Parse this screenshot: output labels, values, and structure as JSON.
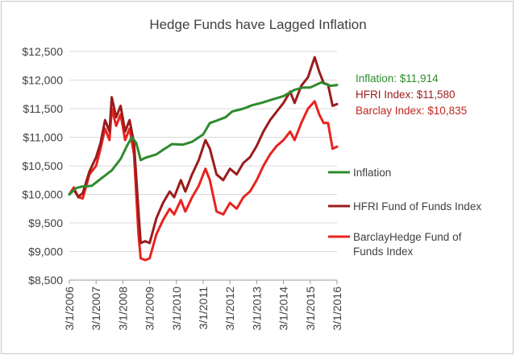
{
  "chart_data": {
    "type": "line",
    "title": "Hedge Funds have Lagged Inflation",
    "xlabel": "",
    "ylabel": "",
    "ylim": [
      8500,
      12500
    ],
    "y_ticks": [
      "$8,500",
      "$9,000",
      "$9,500",
      "$10,000",
      "$10,500",
      "$11,000",
      "$11,500",
      "$12,000",
      "$12,500"
    ],
    "x_ticks": [
      "3/1/2006",
      "3/1/2007",
      "3/1/2008",
      "3/1/2009",
      "3/1/2010",
      "3/1/2011",
      "3/1/2012",
      "3/1/2013",
      "3/1/2014",
      "3/1/2015",
      "3/1/2016"
    ],
    "grid": true,
    "legend_position": "right",
    "series": [
      {
        "name": "Inflation",
        "color": "#2e8b2e",
        "points": [
          [
            "2006-03",
            10000
          ],
          [
            "2006-06",
            10110
          ],
          [
            "2006-09",
            10140
          ],
          [
            "2007-01",
            10150
          ],
          [
            "2007-06",
            10300
          ],
          [
            "2007-10",
            10420
          ],
          [
            "2008-02",
            10620
          ],
          [
            "2008-05",
            10860
          ],
          [
            "2008-07",
            11000
          ],
          [
            "2008-09",
            10900
          ],
          [
            "2008-11",
            10600
          ],
          [
            "2009-01",
            10640
          ],
          [
            "2009-06",
            10700
          ],
          [
            "2009-09",
            10780
          ],
          [
            "2010-01",
            10880
          ],
          [
            "2010-06",
            10870
          ],
          [
            "2010-10",
            10920
          ],
          [
            "2011-03",
            11050
          ],
          [
            "2011-06",
            11250
          ],
          [
            "2011-09",
            11290
          ],
          [
            "2012-01",
            11350
          ],
          [
            "2012-04",
            11450
          ],
          [
            "2012-09",
            11500
          ],
          [
            "2013-01",
            11560
          ],
          [
            "2013-05",
            11600
          ],
          [
            "2013-10",
            11660
          ],
          [
            "2014-03",
            11720
          ],
          [
            "2014-08",
            11830
          ],
          [
            "2014-12",
            11870
          ],
          [
            "2015-03",
            11870
          ],
          [
            "2015-08",
            11960
          ],
          [
            "2015-12",
            11900
          ],
          [
            "2016-03",
            11914
          ]
        ]
      },
      {
        "name": "HFRI Fund of Funds Index",
        "color": "#9b1c1c",
        "points": [
          [
            "2006-03",
            10000
          ],
          [
            "2006-05",
            10080
          ],
          [
            "2006-07",
            9960
          ],
          [
            "2006-09",
            10020
          ],
          [
            "2006-12",
            10400
          ],
          [
            "2007-03",
            10650
          ],
          [
            "2007-05",
            10900
          ],
          [
            "2007-07",
            11300
          ],
          [
            "2007-09",
            11100
          ],
          [
            "2007-10",
            11700
          ],
          [
            "2007-12",
            11350
          ],
          [
            "2008-02",
            11550
          ],
          [
            "2008-04",
            11100
          ],
          [
            "2008-06",
            11300
          ],
          [
            "2008-08",
            10900
          ],
          [
            "2008-10",
            9700
          ],
          [
            "2008-11",
            9150
          ],
          [
            "2009-01",
            9180
          ],
          [
            "2009-03",
            9150
          ],
          [
            "2009-06",
            9580
          ],
          [
            "2009-09",
            9850
          ],
          [
            "2009-12",
            10050
          ],
          [
            "2010-02",
            9950
          ],
          [
            "2010-05",
            10250
          ],
          [
            "2010-07",
            10050
          ],
          [
            "2010-10",
            10350
          ],
          [
            "2011-01",
            10600
          ],
          [
            "2011-04",
            10950
          ],
          [
            "2011-06",
            10800
          ],
          [
            "2011-09",
            10350
          ],
          [
            "2011-12",
            10250
          ],
          [
            "2012-03",
            10450
          ],
          [
            "2012-06",
            10350
          ],
          [
            "2012-09",
            10550
          ],
          [
            "2012-12",
            10650
          ],
          [
            "2013-03",
            10850
          ],
          [
            "2013-06",
            11100
          ],
          [
            "2013-09",
            11300
          ],
          [
            "2013-12",
            11450
          ],
          [
            "2014-03",
            11600
          ],
          [
            "2014-06",
            11800
          ],
          [
            "2014-08",
            11600
          ],
          [
            "2014-11",
            11900
          ],
          [
            "2015-02",
            12050
          ],
          [
            "2015-05",
            12400
          ],
          [
            "2015-07",
            12150
          ],
          [
            "2015-09",
            11950
          ],
          [
            "2015-11",
            11920
          ],
          [
            "2016-01",
            11550
          ],
          [
            "2016-03",
            11580
          ]
        ]
      },
      {
        "name": "BarclayHedge Fund of Funds Index",
        "color": "#e8231f",
        "points": [
          [
            "2006-03",
            10000
          ],
          [
            "2006-05",
            10120
          ],
          [
            "2006-07",
            9950
          ],
          [
            "2006-09",
            9930
          ],
          [
            "2006-12",
            10350
          ],
          [
            "2007-03",
            10500
          ],
          [
            "2007-05",
            10800
          ],
          [
            "2007-07",
            11150
          ],
          [
            "2007-09",
            10950
          ],
          [
            "2007-10",
            11500
          ],
          [
            "2007-12",
            11200
          ],
          [
            "2008-02",
            11400
          ],
          [
            "2008-04",
            10950
          ],
          [
            "2008-06",
            11150
          ],
          [
            "2008-08",
            10700
          ],
          [
            "2008-10",
            9300
          ],
          [
            "2008-11",
            8880
          ],
          [
            "2009-01",
            8850
          ],
          [
            "2009-03",
            8880
          ],
          [
            "2009-06",
            9300
          ],
          [
            "2009-09",
            9550
          ],
          [
            "2009-12",
            9750
          ],
          [
            "2010-02",
            9650
          ],
          [
            "2010-05",
            9900
          ],
          [
            "2010-07",
            9700
          ],
          [
            "2010-10",
            9950
          ],
          [
            "2011-01",
            10150
          ],
          [
            "2011-04",
            10450
          ],
          [
            "2011-06",
            10250
          ],
          [
            "2011-09",
            9700
          ],
          [
            "2011-12",
            9650
          ],
          [
            "2012-03",
            9850
          ],
          [
            "2012-06",
            9750
          ],
          [
            "2012-09",
            9950
          ],
          [
            "2012-12",
            10050
          ],
          [
            "2013-03",
            10250
          ],
          [
            "2013-06",
            10500
          ],
          [
            "2013-09",
            10700
          ],
          [
            "2013-12",
            10850
          ],
          [
            "2014-03",
            10950
          ],
          [
            "2014-06",
            11100
          ],
          [
            "2014-08",
            10950
          ],
          [
            "2014-11",
            11250
          ],
          [
            "2015-02",
            11500
          ],
          [
            "2015-05",
            11630
          ],
          [
            "2015-07",
            11400
          ],
          [
            "2015-09",
            11250
          ],
          [
            "2015-11",
            11250
          ],
          [
            "2016-01",
            10800
          ],
          [
            "2016-03",
            10835
          ]
        ]
      }
    ],
    "annotations": [
      {
        "text": "Inflation: $11,914",
        "color": "#2e8b2e"
      },
      {
        "text": "HFRI Index: $11,580",
        "color": "#9b1c1c"
      },
      {
        "text": "Barclay Index: $10,835",
        "color": "#c0261f"
      }
    ],
    "legend": [
      {
        "label": "Inflation",
        "color": "#2e8b2e"
      },
      {
        "label": "HFRI Fund of Funds Index",
        "color": "#9b1c1c"
      },
      {
        "label": "BarclayHedge Fund of",
        "label_line2": "Funds Index",
        "color": "#e8231f"
      }
    ]
  }
}
